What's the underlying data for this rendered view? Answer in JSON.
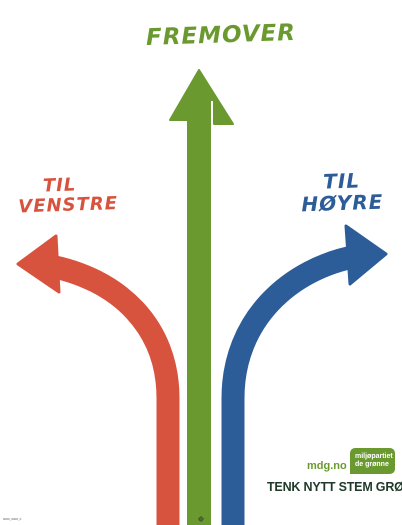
{
  "poster": {
    "label_center": "FREMOVER",
    "label_left": [
      "TIL",
      "VENSTRE"
    ],
    "label_right": [
      "TIL",
      "HØYRE"
    ],
    "site_url": "mdg.no",
    "logo": [
      "miljøpartiet",
      "de grønne"
    ],
    "slogan": "TENK NYTT STEM GRØNT",
    "footer_left": "0000_0000_0"
  },
  "colors": {
    "green": "#6a9a2f",
    "red": "#d8533e",
    "blue": "#2d5d99",
    "dark_green": "#1f3a2a",
    "background": "#ffffff"
  },
  "icons": [
    "arrow-up-icon",
    "arrow-left-curved-icon",
    "arrow-right-curved-icon",
    "party-logo-icon",
    "crop-mark-icon"
  ]
}
